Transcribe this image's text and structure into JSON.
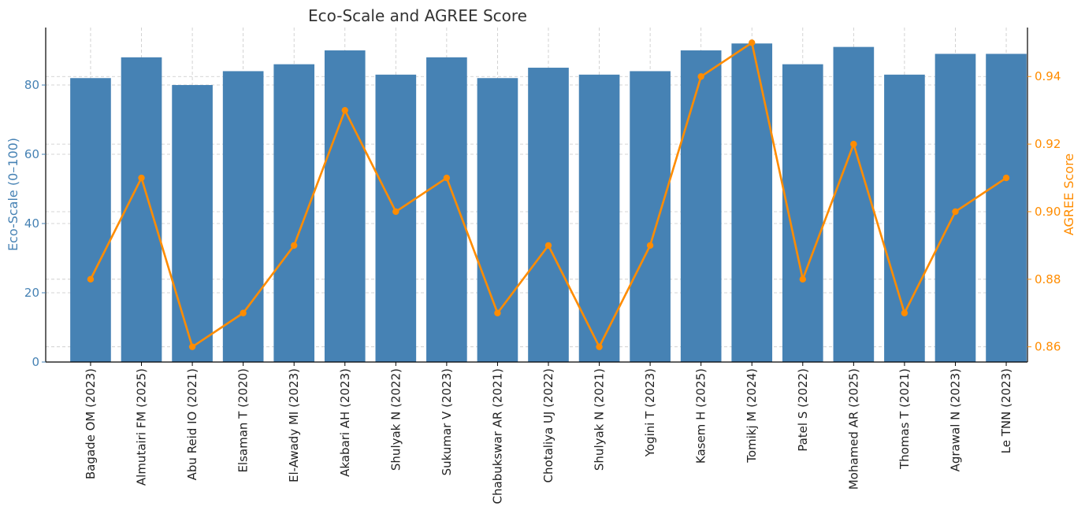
{
  "chart_data": {
    "type": "bar",
    "title": "Eco-Scale and AGREE Score",
    "categories": [
      "Bagade OM (2023)",
      "Almutairi FM (2025)",
      "Abu Reid IO (2021)",
      "Elsaman T (2020)",
      "El-Awady MI (2023)",
      "Akabari AH (2023)",
      "Shulyak N (2022)",
      "Sukumar V (2023)",
      "Chabukswar AR (2021)",
      "Chotaliya UJ (2022)",
      "Shulyak N (2021)",
      "Yogini T (2023)",
      "Kasem H (2025)",
      "Tomikj M (2024)",
      "Patel S (2022)",
      "Mohamed AR (2025)",
      "Thomas T (2021)",
      "Agrawal N (2023)",
      "Le TNN (2023)"
    ],
    "series": [
      {
        "type": "bar",
        "axis": "left",
        "color": "#4682b4",
        "values": [
          82,
          88,
          80,
          84,
          86,
          90,
          83,
          88,
          82,
          85,
          83,
          84,
          90,
          92,
          86,
          91,
          83,
          89,
          89
        ]
      },
      {
        "type": "line",
        "axis": "right",
        "color": "#ff8c00",
        "values": [
          0.88,
          0.91,
          0.86,
          0.87,
          0.89,
          0.93,
          0.9,
          0.91,
          0.87,
          0.89,
          0.86,
          0.89,
          0.94,
          0.95,
          0.88,
          0.92,
          0.87,
          0.9,
          0.91
        ]
      }
    ],
    "ylabel": "Eco-Scale (0–100)",
    "ylim": [
      0,
      96.6
    ],
    "yticks": [
      0,
      20,
      40,
      60,
      80
    ],
    "ytick_labels": [
      "0",
      "20",
      "40",
      "60",
      "80"
    ],
    "y2label": "AGREE Score",
    "y2lim": [
      0.8555,
      0.9545
    ],
    "y2ticks": [
      0.86,
      0.88,
      0.9,
      0.92,
      0.94
    ],
    "y2tick_labels": [
      "0.86",
      "0.88",
      "0.90",
      "0.92",
      "0.94"
    ],
    "grid": true,
    "left_axis_color": "#4682b4",
    "right_axis_color": "#ff8c00"
  }
}
